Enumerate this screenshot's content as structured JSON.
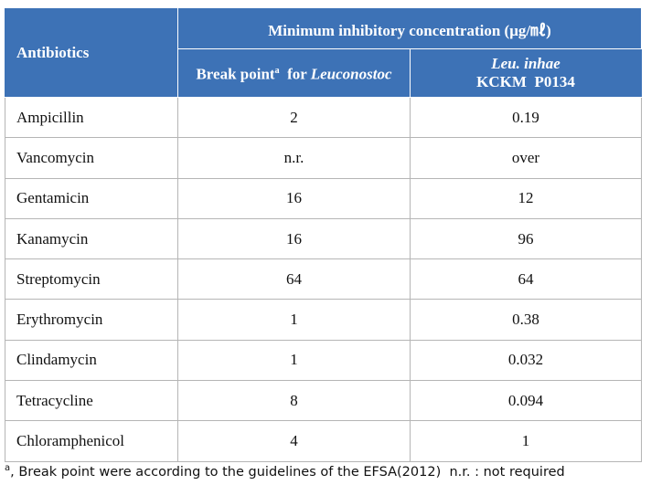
{
  "header": {
    "group": "Minimum  inhibitory  concentration (μg/㎖)",
    "col0": "Antibiotics",
    "col1": {
      "text": "Break point",
      "sup": "a",
      "mid": "  for ",
      "italic": "Leuconostoc"
    },
    "col2": {
      "line1": "Leu. inhae",
      "line2": "KCKM  P0134"
    }
  },
  "table": {
    "rows": [
      [
        "Ampicillin",
        "2",
        "0.19"
      ],
      [
        "Vancomycin",
        "n.r.",
        "over"
      ],
      [
        "Gentamicin",
        "16",
        "12"
      ],
      [
        "Kanamycin",
        "16",
        "96"
      ],
      [
        "Streptomycin",
        "64",
        "64"
      ],
      [
        "Erythromycin",
        "1",
        "0.38"
      ],
      [
        "Clindamycin",
        "1",
        "0.032"
      ],
      [
        "Tetracycline",
        "8",
        "0.094"
      ],
      [
        "Chloramphenicol",
        "4",
        "1"
      ]
    ]
  },
  "footnote": {
    "sup": "a",
    "text": ", Break point were according to the guidelines of the EFSA(2012)  n.r. : not required"
  }
}
